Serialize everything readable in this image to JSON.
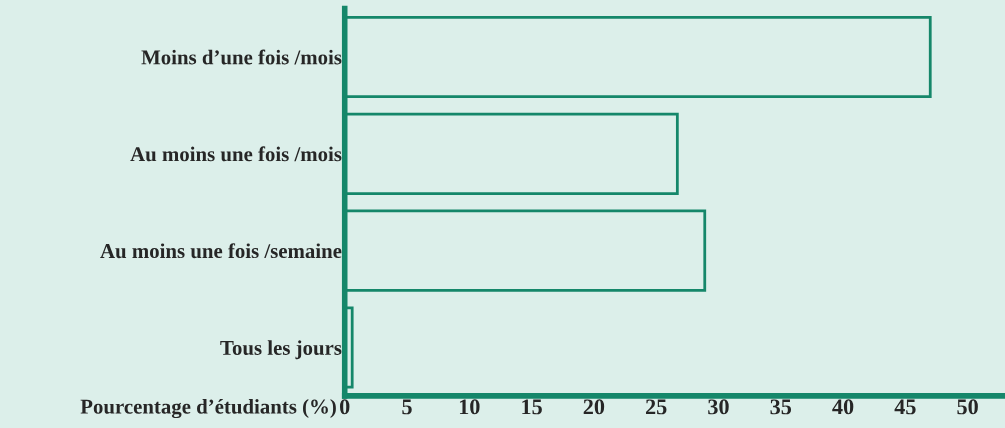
{
  "chart_data": {
    "type": "bar",
    "orientation": "horizontal",
    "xlabel": "Pourcentage d’étudiants (%)",
    "categories": [
      "Moins d’une fois /mois",
      "Au moins une fois /mois",
      "Au moins une fois /semaine",
      "Tous les jours"
    ],
    "values": [
      47,
      26.7,
      28.9,
      0.6
    ],
    "color": "#15876a",
    "xlim": [
      0,
      53
    ],
    "xticks": [
      0,
      5,
      10,
      15,
      20,
      25,
      30,
      35,
      40,
      45,
      50
    ],
    "grid": false,
    "legend": false
  }
}
